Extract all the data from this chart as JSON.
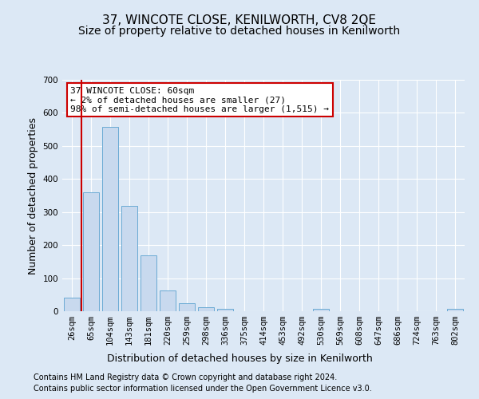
{
  "title": "37, WINCOTE CLOSE, KENILWORTH, CV8 2QE",
  "subtitle": "Size of property relative to detached houses in Kenilworth",
  "xlabel": "Distribution of detached houses by size in Kenilworth",
  "ylabel": "Number of detached properties",
  "bar_labels": [
    "26sqm",
    "65sqm",
    "104sqm",
    "143sqm",
    "181sqm",
    "220sqm",
    "259sqm",
    "298sqm",
    "336sqm",
    "375sqm",
    "414sqm",
    "453sqm",
    "492sqm",
    "530sqm",
    "569sqm",
    "608sqm",
    "647sqm",
    "686sqm",
    "724sqm",
    "763sqm",
    "802sqm"
  ],
  "bar_values": [
    40,
    360,
    558,
    318,
    170,
    62,
    25,
    12,
    8,
    0,
    0,
    0,
    0,
    7,
    0,
    0,
    0,
    0,
    0,
    0,
    7
  ],
  "bar_color": "#c8d9ee",
  "bar_edge_color": "#6aaad4",
  "vline_color": "#cc0000",
  "annotation_text": "37 WINCOTE CLOSE: 60sqm\n← 2% of detached houses are smaller (27)\n98% of semi-detached houses are larger (1,515) →",
  "annotation_box_color": "#cc0000",
  "ylim": [
    0,
    700
  ],
  "yticks": [
    0,
    100,
    200,
    300,
    400,
    500,
    600,
    700
  ],
  "footer_line1": "Contains HM Land Registry data © Crown copyright and database right 2024.",
  "footer_line2": "Contains public sector information licensed under the Open Government Licence v3.0.",
  "bg_color": "#dce8f5",
  "plot_bg_color": "#dce8f5",
  "grid_color": "#ffffff",
  "title_fontsize": 11,
  "subtitle_fontsize": 10,
  "axis_label_fontsize": 9,
  "tick_fontsize": 7.5,
  "footer_fontsize": 7
}
